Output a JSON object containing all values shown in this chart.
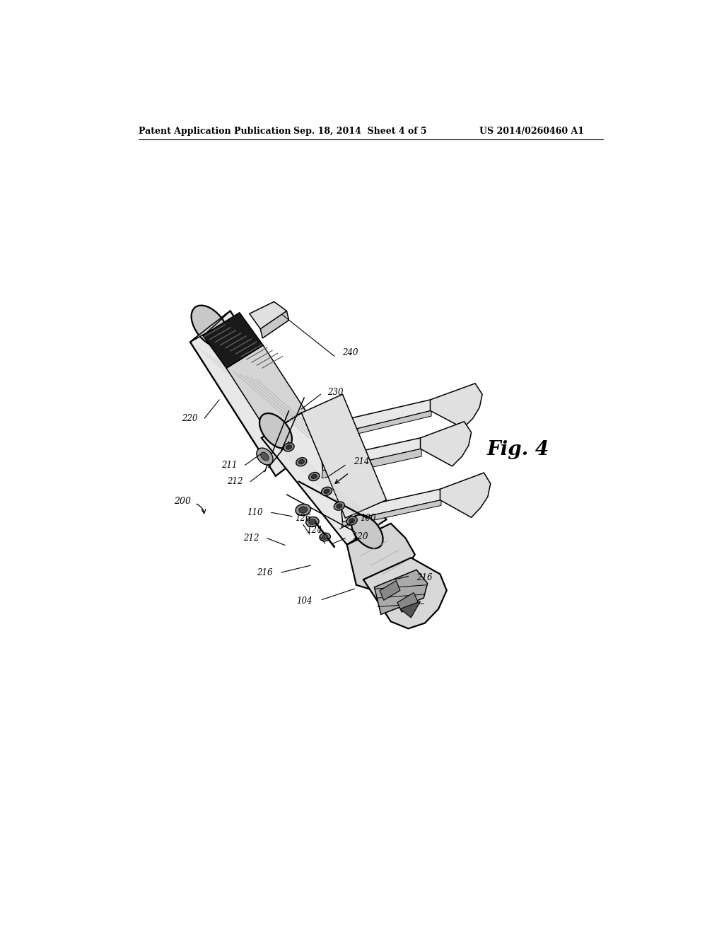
{
  "background_color": "#ffffff",
  "page_width": 10.24,
  "page_height": 13.2,
  "header_left": "Patent Application Publication",
  "header_mid": "Sep. 18, 2014  Sheet 4 of 5",
  "header_right": "US 2014/0260460 A1",
  "fig_label": "Fig. 4",
  "lw_thick": 1.6,
  "lw_med": 1.1,
  "lw_thin": 0.7,
  "light_gray": "#e8e8e8",
  "mid_gray": "#c8c8c8",
  "dark_gray": "#909090",
  "spring_dark": "#1a1a1a",
  "shade_gray": "#b8b8b8"
}
